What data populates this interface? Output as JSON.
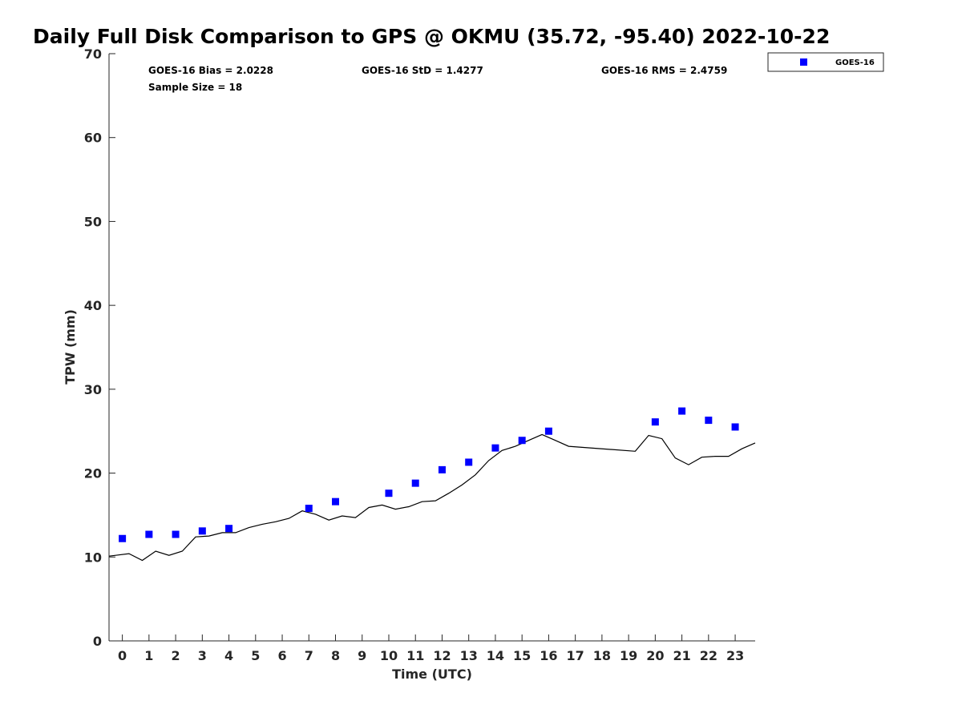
{
  "chart_data": {
    "type": "scatter",
    "title": "Daily Full Disk Comparison to GPS @ OKMU (35.72, -95.40) 2022-10-22",
    "xlabel": "Time (UTC)",
    "ylabel": "TPW (mm)",
    "xlim": [
      -0.5,
      23.75
    ],
    "ylim": [
      0,
      70
    ],
    "xticks": [
      "0",
      "1",
      "2",
      "3",
      "4",
      "5",
      "6",
      "7",
      "8",
      "9",
      "10",
      "11",
      "12",
      "13",
      "14",
      "15",
      "16",
      "17",
      "18",
      "19",
      "20",
      "21",
      "22",
      "23"
    ],
    "yticks": [
      "0",
      "10",
      "20",
      "30",
      "40",
      "50",
      "60",
      "70"
    ],
    "grid": false,
    "legend_placement": "top-right outside",
    "stats": {
      "bias": "GOES-16 Bias = 2.0228",
      "std": "GOES-16 StD = 1.4277",
      "rms": "GOES-16 RMS = 2.4759",
      "sample": "Sample Size = 18"
    },
    "series": [
      {
        "name": "GOES-16",
        "kind": "scatter",
        "marker": "square",
        "color": "#0000ff",
        "points": [
          [
            0.0,
            12.2
          ],
          [
            1.0,
            12.7
          ],
          [
            2.0,
            12.7
          ],
          [
            3.0,
            13.1
          ],
          [
            4.0,
            13.4
          ],
          [
            7.0,
            15.8
          ],
          [
            8.0,
            16.6
          ],
          [
            10.0,
            17.6
          ],
          [
            11.0,
            18.8
          ],
          [
            12.0,
            20.4
          ],
          [
            13.0,
            21.3
          ],
          [
            14.0,
            23.0
          ],
          [
            15.0,
            23.9
          ],
          [
            16.0,
            25.0
          ],
          [
            20.0,
            26.1
          ],
          [
            21.0,
            27.4
          ],
          [
            22.0,
            26.3
          ],
          [
            23.0,
            25.5
          ]
        ]
      },
      {
        "kind": "line",
        "color": "#000000",
        "points": [
          [
            -0.5,
            10.1
          ],
          [
            -0.25,
            10.2
          ],
          [
            0.25,
            10.4
          ],
          [
            0.75,
            9.6
          ],
          [
            1.25,
            10.7
          ],
          [
            1.75,
            10.2
          ],
          [
            2.25,
            10.7
          ],
          [
            2.75,
            12.4
          ],
          [
            3.25,
            12.5
          ],
          [
            3.75,
            12.9
          ],
          [
            4.25,
            12.9
          ],
          [
            4.75,
            13.5
          ],
          [
            5.25,
            13.9
          ],
          [
            5.75,
            14.2
          ],
          [
            6.25,
            14.6
          ],
          [
            6.75,
            15.5
          ],
          [
            7.25,
            15.1
          ],
          [
            7.75,
            14.4
          ],
          [
            8.25,
            14.9
          ],
          [
            8.75,
            14.7
          ],
          [
            9.25,
            15.9
          ],
          [
            9.75,
            16.2
          ],
          [
            10.25,
            15.7
          ],
          [
            10.75,
            16.0
          ],
          [
            11.25,
            16.6
          ],
          [
            11.75,
            16.7
          ],
          [
            12.25,
            17.6
          ],
          [
            12.75,
            18.6
          ],
          [
            13.25,
            19.8
          ],
          [
            13.75,
            21.5
          ],
          [
            14.25,
            22.7
          ],
          [
            14.75,
            23.2
          ],
          [
            15.25,
            23.9
          ],
          [
            15.75,
            24.6
          ],
          [
            16.25,
            23.9
          ],
          [
            16.75,
            23.2
          ],
          [
            19.25,
            22.6
          ],
          [
            19.75,
            24.5
          ],
          [
            20.25,
            24.1
          ],
          [
            20.75,
            21.8
          ],
          [
            21.25,
            21.0
          ],
          [
            21.75,
            21.9
          ],
          [
            22.25,
            22.0
          ],
          [
            22.75,
            22.0
          ],
          [
            23.25,
            22.9
          ],
          [
            23.75,
            23.6
          ]
        ]
      }
    ]
  }
}
